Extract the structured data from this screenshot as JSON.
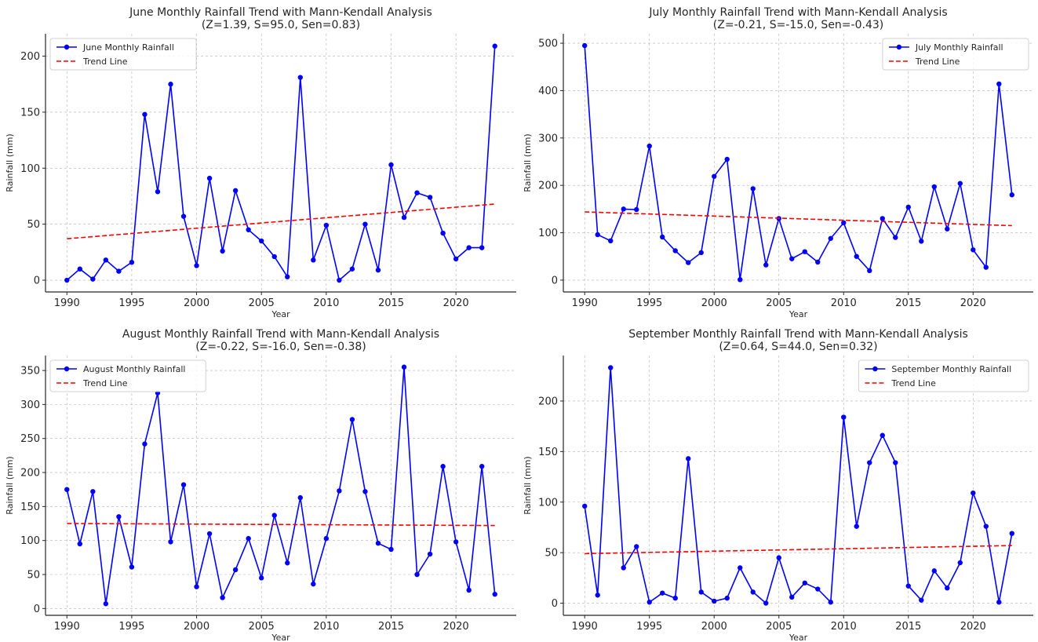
{
  "chart_data": [
    {
      "type": "line",
      "title": "June Monthly Rainfall Trend with Mann-Kendall Analysis",
      "subtitle": "(Z=1.39, S=95.0, Sen=0.83)",
      "xlabel": "Year",
      "ylabel": "Rainfall (mm)",
      "xlim": [
        1988.35,
        2024.65
      ],
      "ylim": [
        -10.5,
        220
      ],
      "xticks": [
        1990,
        1995,
        2000,
        2005,
        2010,
        2015,
        2020
      ],
      "yticks": [
        0,
        50,
        100,
        150,
        200
      ],
      "grid": true,
      "legend_position": "top-left",
      "series": [
        {
          "name": "June Monthly Rainfall",
          "style": "line-marker",
          "color": "#0000ff",
          "x": [
            1990,
            1991,
            1992,
            1993,
            1994,
            1995,
            1996,
            1997,
            1998,
            1999,
            2000,
            2001,
            2002,
            2003,
            2004,
            2005,
            2006,
            2007,
            2008,
            2009,
            2010,
            2011,
            2012,
            2013,
            2014,
            2015,
            2016,
            2017,
            2018,
            2019,
            2020,
            2021,
            2022,
            2023
          ],
          "y": [
            0,
            10,
            1,
            18,
            8,
            16,
            148,
            79,
            175,
            57,
            13,
            91,
            26,
            80,
            45,
            35,
            21,
            3,
            181,
            18,
            49,
            0,
            10,
            50,
            9,
            103,
            56,
            78,
            74,
            42,
            19,
            29,
            29,
            209
          ]
        },
        {
          "name": "Trend Line",
          "style": "dashed",
          "color": "#ff0000",
          "x": [
            1990,
            2023
          ],
          "y": [
            37,
            68
          ]
        }
      ]
    },
    {
      "type": "line",
      "title": "July Monthly Rainfall Trend with Mann-Kendall Analysis",
      "subtitle": "(Z=-0.21, S=-15.0, Sen=-0.43)",
      "xlabel": "Year",
      "ylabel": "Rainfall (mm)",
      "xlim": [
        1988.35,
        2024.65
      ],
      "ylim": [
        -25,
        520
      ],
      "xticks": [
        1990,
        1995,
        2000,
        2005,
        2010,
        2015,
        2020
      ],
      "yticks": [
        0,
        100,
        200,
        300,
        400,
        500
      ],
      "grid": true,
      "legend_position": "top-right",
      "series": [
        {
          "name": "July Monthly Rainfall",
          "style": "line-marker",
          "color": "#0000ff",
          "x": [
            1990,
            1991,
            1992,
            1993,
            1994,
            1995,
            1996,
            1997,
            1998,
            1999,
            2000,
            2001,
            2002,
            2003,
            2004,
            2005,
            2006,
            2007,
            2008,
            2009,
            2010,
            2011,
            2012,
            2013,
            2014,
            2015,
            2016,
            2017,
            2018,
            2019,
            2020,
            2021,
            2022,
            2023
          ],
          "y": [
            495,
            96,
            83,
            150,
            149,
            283,
            91,
            62,
            37,
            58,
            219,
            255,
            1,
            193,
            32,
            130,
            45,
            60,
            38,
            88,
            121,
            50,
            20,
            130,
            90,
            154,
            82,
            197,
            108,
            204,
            64,
            27,
            414,
            180
          ]
        },
        {
          "name": "Trend Line",
          "style": "dashed",
          "color": "#ff0000",
          "x": [
            1990,
            2023
          ],
          "y": [
            144,
            115
          ]
        }
      ]
    },
    {
      "type": "line",
      "title": "August Monthly Rainfall Trend with Mann-Kendall Analysis",
      "subtitle": "(Z=-0.22, S=-16.0, Sen=-0.38)",
      "xlabel": "Year",
      "ylabel": "Rainfall (mm)",
      "xlim": [
        1988.35,
        2024.65
      ],
      "ylim": [
        -10,
        372
      ],
      "xticks": [
        1990,
        1995,
        2000,
        2005,
        2010,
        2015,
        2020
      ],
      "yticks": [
        0,
        50,
        100,
        150,
        200,
        250,
        300,
        350
      ],
      "grid": true,
      "legend_position": "top-left",
      "series": [
        {
          "name": "August Monthly Rainfall",
          "style": "line-marker",
          "color": "#0000ff",
          "x": [
            1990,
            1991,
            1992,
            1993,
            1994,
            1995,
            1996,
            1997,
            1998,
            1999,
            2000,
            2001,
            2002,
            2003,
            2004,
            2005,
            2006,
            2007,
            2008,
            2009,
            2010,
            2011,
            2012,
            2013,
            2014,
            2015,
            2016,
            2017,
            2018,
            2019,
            2020,
            2021,
            2022,
            2023
          ],
          "y": [
            175,
            95,
            172,
            7,
            135,
            61,
            242,
            317,
            98,
            182,
            32,
            110,
            16,
            57,
            103,
            45,
            137,
            67,
            163,
            36,
            103,
            173,
            278,
            172,
            96,
            87,
            355,
            50,
            80,
            209,
            98,
            27,
            209,
            21
          ]
        },
        {
          "name": "Trend Line",
          "style": "dashed",
          "color": "#ff0000",
          "x": [
            1990,
            2023
          ],
          "y": [
            125,
            122
          ]
        }
      ]
    },
    {
      "type": "line",
      "title": "September Monthly Rainfall Trend with Mann-Kendall Analysis",
      "subtitle": "(Z=0.64, S=44.0, Sen=0.32)",
      "xlabel": "Year",
      "ylabel": "Rainfall (mm)",
      "xlim": [
        1988.35,
        2024.65
      ],
      "ylim": [
        -12,
        245
      ],
      "xticks": [
        1990,
        1995,
        2000,
        2005,
        2010,
        2015,
        2020
      ],
      "yticks": [
        0,
        50,
        100,
        150,
        200
      ],
      "grid": true,
      "legend_position": "top-right",
      "series": [
        {
          "name": "September Monthly Rainfall",
          "style": "line-marker",
          "color": "#0000ff",
          "x": [
            1990,
            1991,
            1992,
            1993,
            1994,
            1995,
            1996,
            1997,
            1998,
            1999,
            2000,
            2001,
            2002,
            2003,
            2004,
            2005,
            2006,
            2007,
            2008,
            2009,
            2010,
            2011,
            2012,
            2013,
            2014,
            2015,
            2016,
            2017,
            2018,
            2019,
            2020,
            2021,
            2022,
            2023
          ],
          "y": [
            96,
            8,
            233,
            35,
            56,
            1,
            10,
            5,
            143,
            11,
            2,
            5,
            35,
            11,
            0,
            45,
            6,
            20,
            14,
            1,
            184,
            76,
            139,
            166,
            139,
            17,
            3,
            32,
            15,
            40,
            109,
            76,
            1,
            69
          ]
        },
        {
          "name": "Trend Line",
          "style": "dashed",
          "color": "#ff0000",
          "x": [
            1990,
            2023
          ],
          "y": [
            49,
            57
          ]
        }
      ]
    }
  ]
}
